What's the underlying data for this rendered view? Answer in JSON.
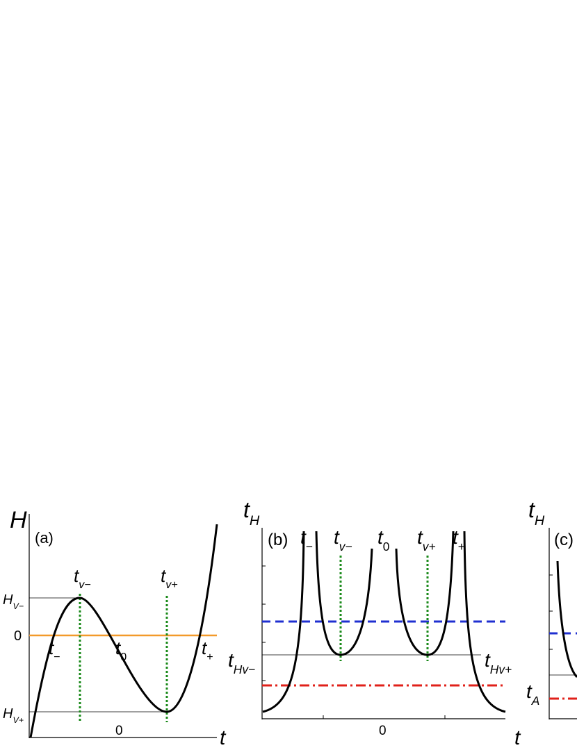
{
  "panels": [
    {
      "y_label": {
        "base": "H"
      },
      "tag": "(a)",
      "x_label": {
        "base": "t"
      },
      "x_tick": "0",
      "labels": [
        {
          "base": "t",
          "sub": "v−"
        },
        {
          "base": "t",
          "sub": "v+"
        },
        {
          "base": "H",
          "sub": "V−"
        },
        {
          "base": "0"
        },
        {
          "base": "H",
          "sub": "V+"
        },
        {
          "base": "t",
          "sub": "−"
        },
        {
          "base": "t",
          "sub": "0"
        },
        {
          "base": "t",
          "sub": "+"
        }
      ]
    },
    {
      "y_label": {
        "base": "t",
        "sub": "H"
      },
      "tag": "(b)",
      "x_label": {
        "base": "t"
      },
      "x_tick": "0",
      "labels": [
        {
          "base": "t",
          "sub": "−"
        },
        {
          "base": "t",
          "sub": "v−"
        },
        {
          "base": "t",
          "sub": "0"
        },
        {
          "base": "t",
          "sub": "v+"
        },
        {
          "base": "t",
          "sub": "+"
        },
        {
          "base": "t",
          "sub": "Hv−"
        },
        {
          "base": "t",
          "sub": "Hv+"
        }
      ]
    },
    {
      "y_label": {
        "base": "t",
        "sub": "H"
      },
      "tag": "(c)",
      "labels": [
        {
          "base": "t",
          "sub": "A"
        }
      ]
    }
  ]
}
